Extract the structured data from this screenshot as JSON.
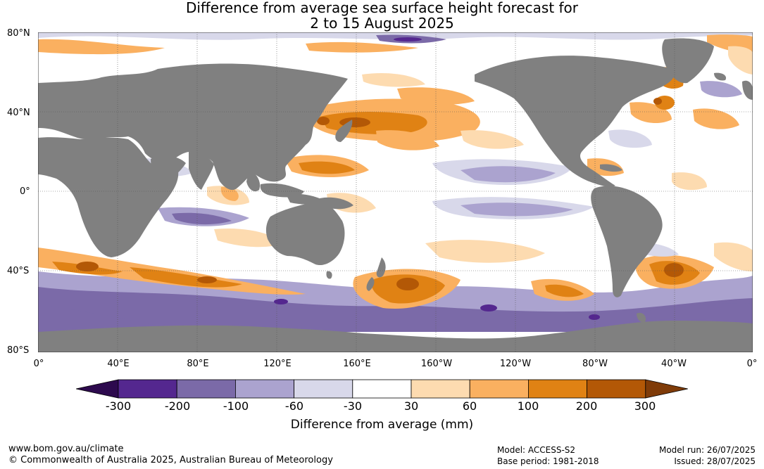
{
  "title": {
    "line1": "Difference from average sea surface height forecast for",
    "line2": "2 to 15 August 2025"
  },
  "map": {
    "lat_labels": [
      "80°N",
      "40°N",
      "0°",
      "40°S",
      "80°S"
    ],
    "lon_labels": [
      "0°",
      "40°E",
      "80°E",
      "120°E",
      "160°E",
      "160°W",
      "120°W",
      "80°W",
      "40°W",
      "0°"
    ],
    "colors": {
      "land": "#808080",
      "ocean_neutral": "#ffffff",
      "grid": "#555555"
    }
  },
  "colorbar": {
    "tick_labels": [
      "-300",
      "-200",
      "-100",
      "-60",
      "-30",
      "30",
      "60",
      "100",
      "200",
      "300"
    ],
    "colors": [
      "#2d0a4e",
      "#54278f",
      "#7b6aa8",
      "#aba3cf",
      "#d8d8ea",
      "#ffffff",
      "#fddbb0",
      "#fab060",
      "#e08214",
      "#b35806",
      "#7f3b08"
    ],
    "label": "Difference from average (mm)"
  },
  "footer": {
    "website": "www.bom.gov.au/climate",
    "copyright": "© Commonwealth of Australia 2025, Australian Bureau of Meteorology",
    "model": "Model: ACCESS-S2",
    "base_period": "Base period: 1981-2018",
    "model_run": "Model run: 26/07/2025",
    "issued": "Issued: 28/07/2025"
  }
}
